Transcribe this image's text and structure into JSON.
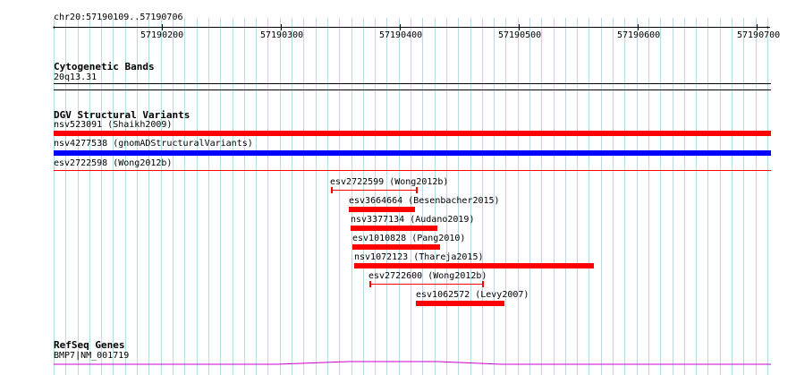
{
  "ruler": {
    "coordinate_label": "chr20:57190109..57190706",
    "ticks": [
      "57190200",
      "57190300",
      "57190400",
      "57190500",
      "57190600",
      "57190700"
    ]
  },
  "tracks": {
    "cytoband": {
      "title": "Cytogenetic Bands",
      "band_label": "20q13.31"
    },
    "dgv": {
      "title": "DGV Structural Variants",
      "colors": {
        "loss": "#ff0000",
        "gain": "#0000ff"
      },
      "full_width": [
        {
          "label": "nsv523091 (Shaikh2009)",
          "type": "loss-thick"
        },
        {
          "label": "nsv4277538 (gnomADStructuralVariants)",
          "type": "gain-thick"
        },
        {
          "label": "esv2722598 (Wong2012b)",
          "type": "loss-thin"
        }
      ],
      "partial": [
        {
          "label": "esv2722599 (Wong2012b)",
          "type": "loss-thin"
        },
        {
          "label": "esv3664664 (Besenbacher2015)",
          "type": "loss-thick"
        },
        {
          "label": "nsv3377134 (Audano2019)",
          "type": "loss-thick"
        },
        {
          "label": "esv1010828 (Pang2010)",
          "type": "loss-thick"
        },
        {
          "label": "nsv1072123 (Thareja2015)",
          "type": "loss-thick"
        },
        {
          "label": "esv2722600 (Wong2012b)",
          "type": "loss-thin"
        },
        {
          "label": "esv1062572 (Levy2007)",
          "type": "loss-thick"
        }
      ]
    },
    "refseq": {
      "title": "RefSeq Genes",
      "gene_label": "BMP7|NM_001719",
      "color": "#cc00cc"
    }
  }
}
